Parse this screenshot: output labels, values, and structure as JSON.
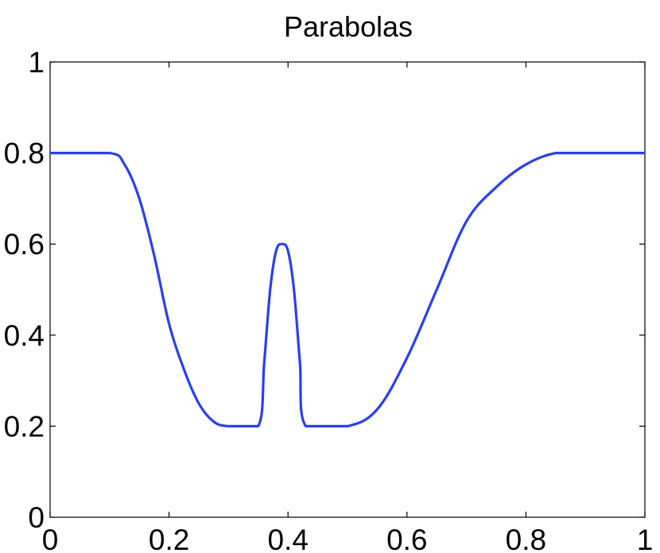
{
  "chart_data": {
    "type": "line",
    "title": "Parabolas",
    "xlabel": "",
    "ylabel": "",
    "xlim": [
      0,
      1
    ],
    "ylim": [
      0,
      1
    ],
    "xticks": [
      0,
      0.2,
      0.4,
      0.6,
      0.8,
      1
    ],
    "yticks": [
      0,
      0.2,
      0.4,
      0.6,
      0.8,
      1
    ],
    "xtick_labels": [
      "0",
      "0.2",
      "0.4",
      "0.6",
      "0.8",
      "1"
    ],
    "ytick_labels": [
      "0",
      "0.2",
      "0.4",
      "0.6",
      "0.8",
      "1"
    ],
    "grid": false,
    "series": [
      {
        "color": "#2a3fef",
        "x": [
          0,
          0.1,
          0.125,
          0.15,
          0.175,
          0.2,
          0.225,
          0.25,
          0.275,
          0.3,
          0.35,
          0.36,
          0.37,
          0.38,
          0.39,
          0.4,
          0.41,
          0.42,
          0.43,
          0.5,
          0.55,
          0.6,
          0.65,
          0.7,
          0.75,
          0.8,
          0.85,
          0.9,
          1
        ],
        "y": [
          0.8,
          0.8,
          0.775,
          0.7,
          0.575,
          0.425,
          0.325,
          0.25,
          0.21,
          0.2,
          0.2,
          0.34,
          0.5,
          0.585,
          0.6,
          0.585,
          0.5,
          0.34,
          0.2,
          0.2,
          0.237,
          0.35,
          0.5,
          0.65,
          0.725,
          0.775,
          0.8,
          0.8,
          0.8
        ]
      }
    ]
  }
}
